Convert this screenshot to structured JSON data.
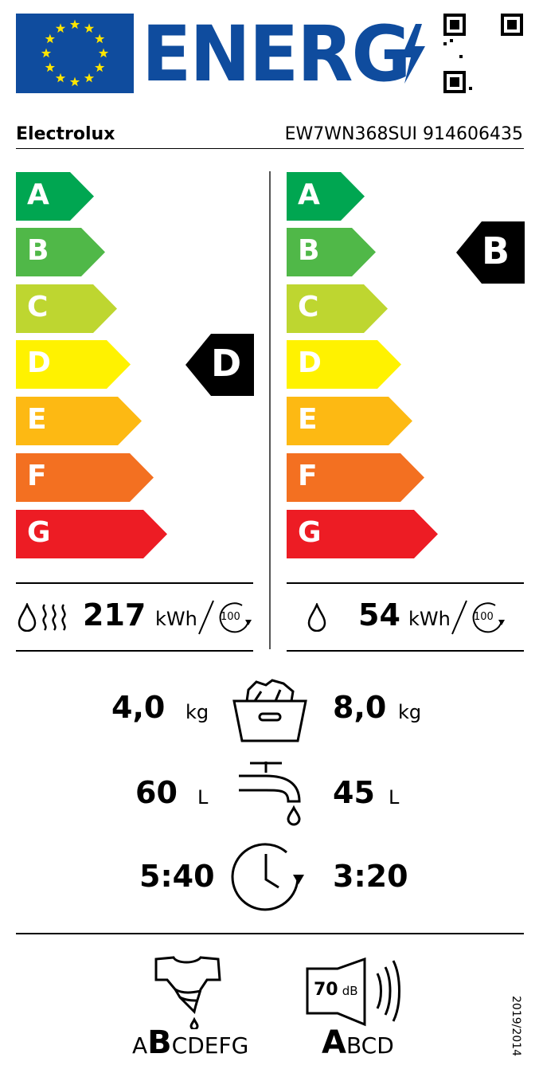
{
  "header": {
    "title": "ENERG",
    "flag_color": "#0f4c9e",
    "star_color": "#ffe500",
    "title_color": "#0f4c9e"
  },
  "supplier": "Electrolux",
  "model": "EW7WN368SUI 914606435",
  "scale": {
    "classes": [
      "A",
      "B",
      "C",
      "D",
      "E",
      "F",
      "G"
    ],
    "colors": [
      "#00a651",
      "#50b848",
      "#bed630",
      "#fff200",
      "#fdb913",
      "#f37021",
      "#ed1c24"
    ]
  },
  "wash_dry": {
    "class": "D",
    "energy": "217",
    "unit": "kWh",
    "cycles": "100"
  },
  "wash": {
    "class": "B",
    "energy": "54",
    "unit": "kWh",
    "cycles": "100"
  },
  "capacity": {
    "wash_dry": "4,0",
    "wash": "8,0",
    "unit": "kg"
  },
  "water": {
    "wash_dry": "60",
    "wash": "45",
    "unit": "L"
  },
  "duration": {
    "wash_dry": "5:40",
    "wash": "3:20"
  },
  "spin": {
    "first": "A",
    "selected": "B",
    "rest": "CDEFG"
  },
  "noise": {
    "value": "70",
    "unit": "dB",
    "selected": "A",
    "rest": "BCD"
  },
  "regulation": "2019/2014"
}
